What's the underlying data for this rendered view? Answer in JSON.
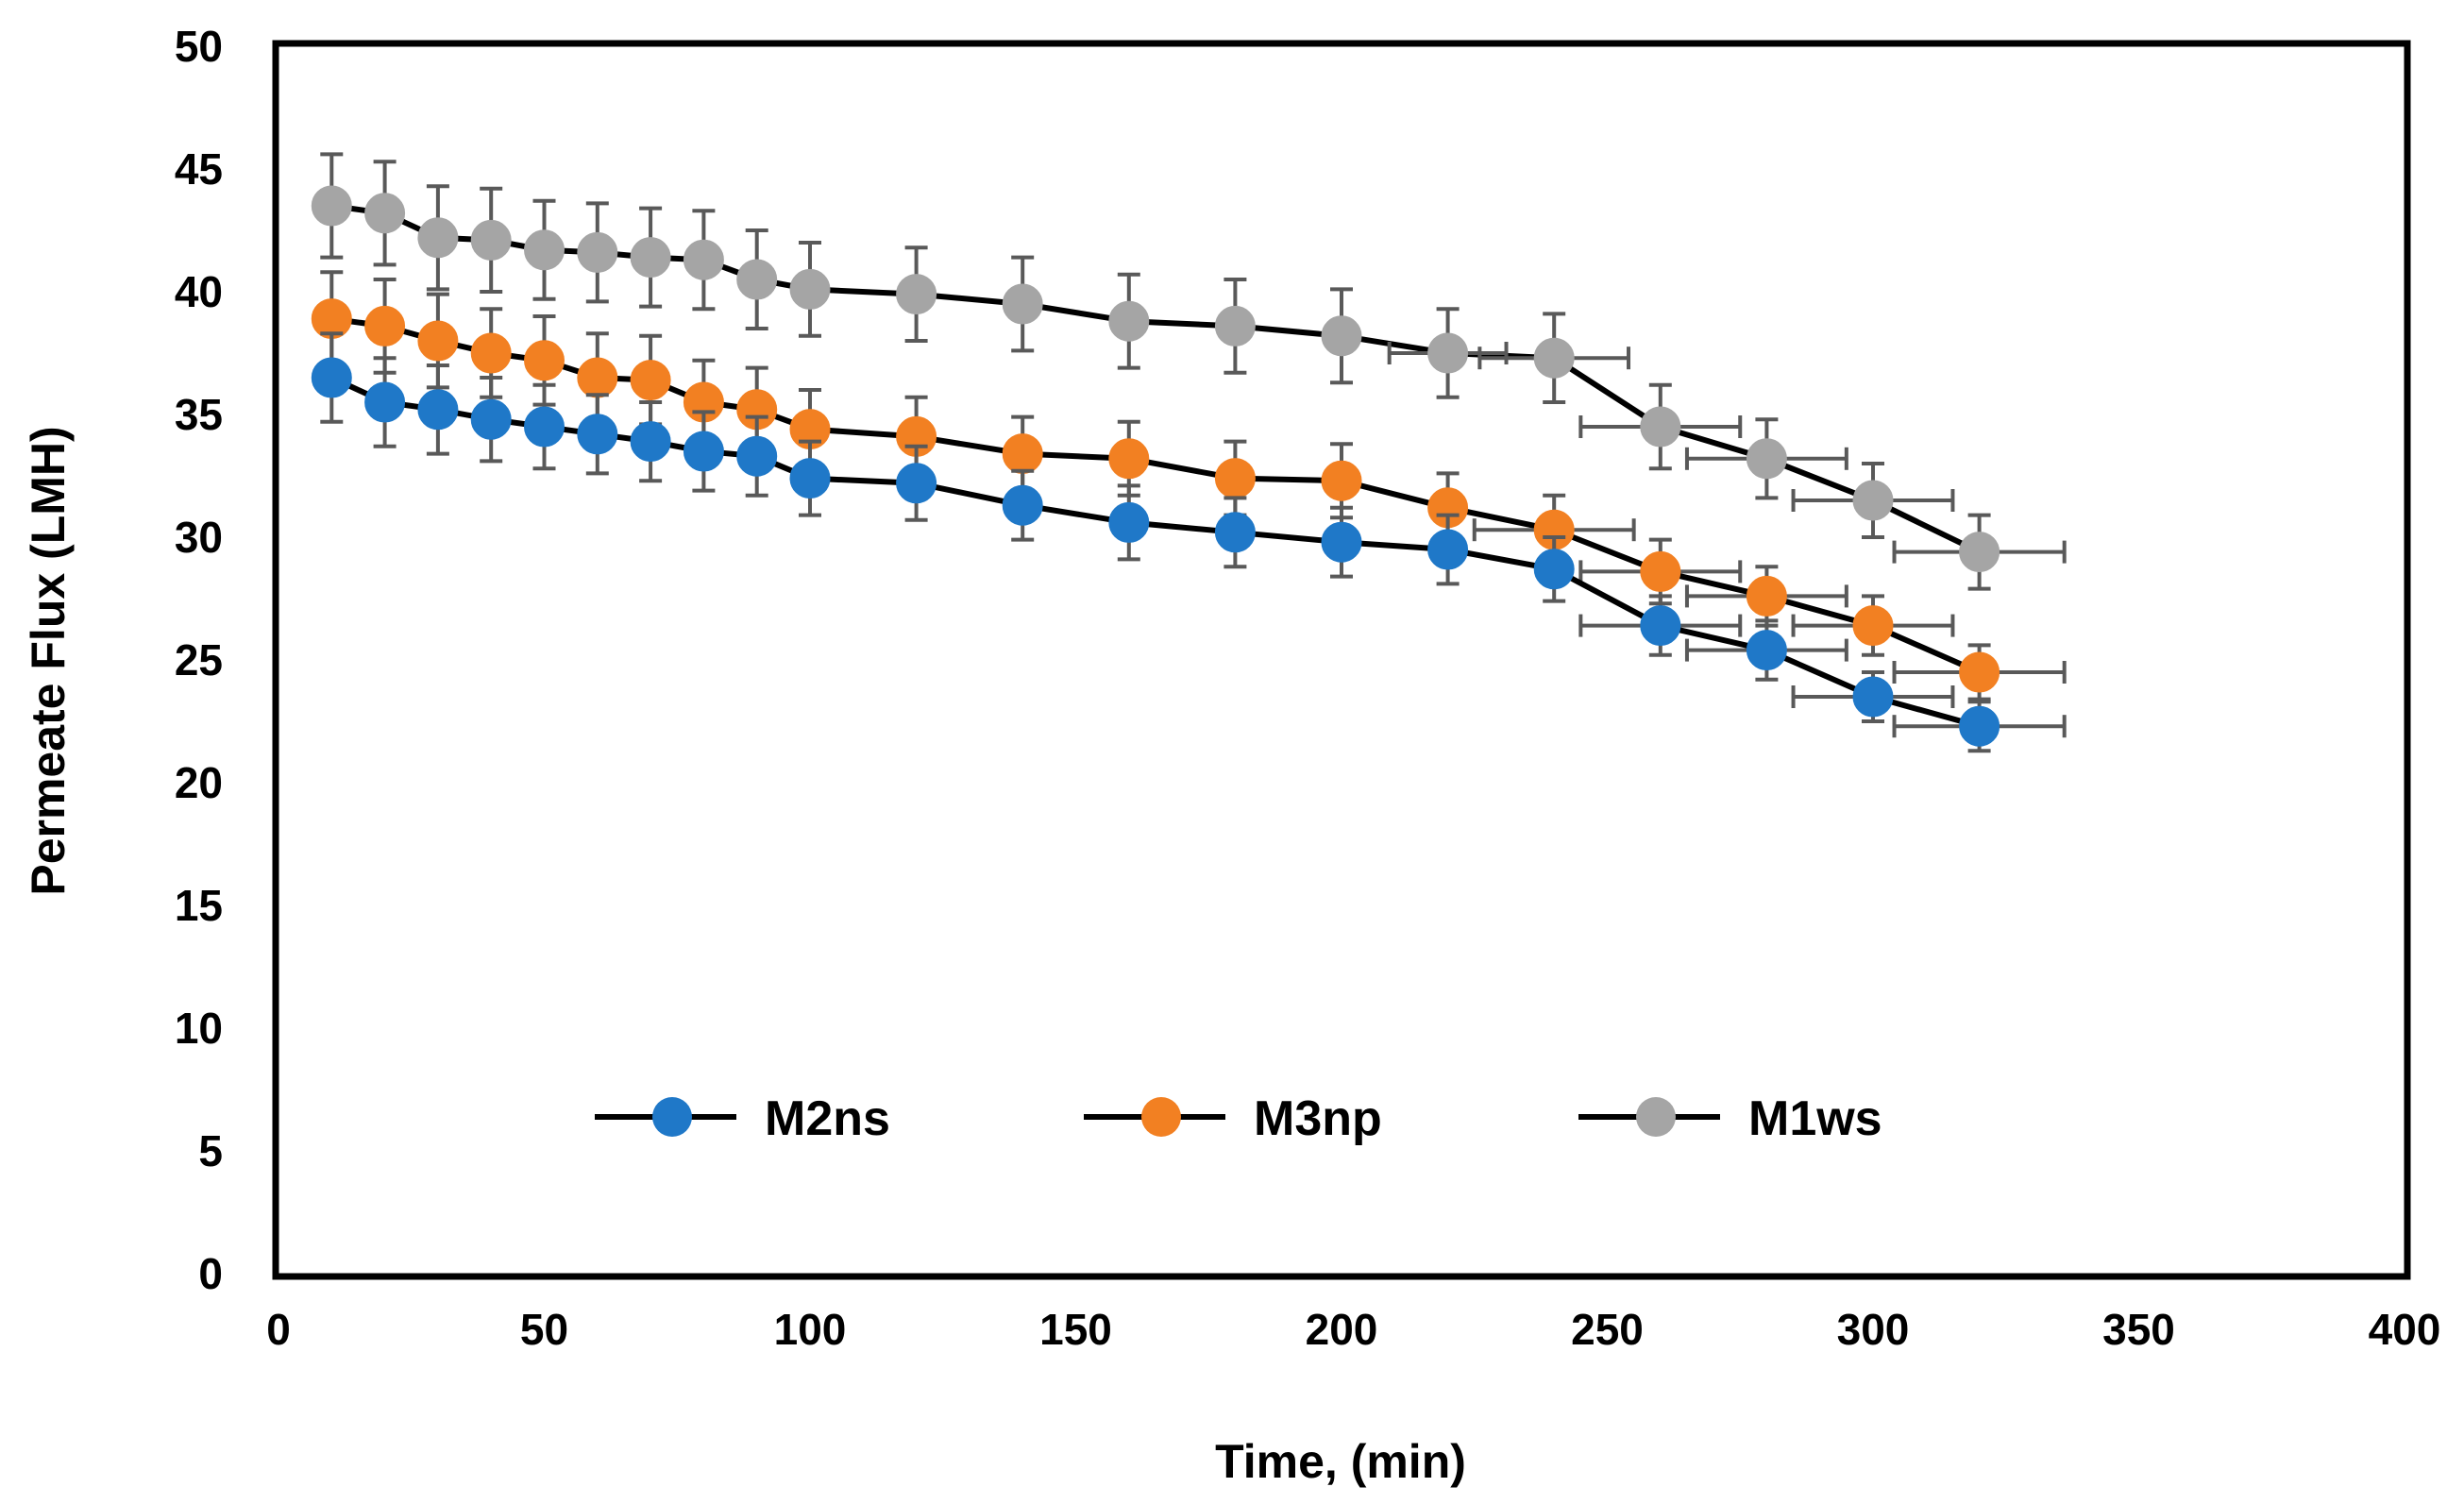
{
  "chart_data": {
    "type": "line",
    "title": "",
    "xlabel": "Time, (min)",
    "ylabel": "Permeate Flux (LMH)",
    "xlim": [
      0,
      400
    ],
    "ylim": [
      0,
      50
    ],
    "x_ticks": [
      0,
      50,
      100,
      150,
      200,
      250,
      300,
      350,
      400
    ],
    "y_ticks": [
      0,
      5,
      10,
      15,
      20,
      25,
      30,
      35,
      40,
      45,
      50
    ],
    "grid": false,
    "legend_position": "inside-bottom-center",
    "error_bars": "x and y",
    "x": [
      10,
      20,
      30,
      40,
      50,
      60,
      70,
      80,
      90,
      100,
      120,
      140,
      160,
      180,
      200,
      220,
      240,
      260,
      280,
      300,
      320
    ],
    "series": [
      {
        "name": "M2ns",
        "color": "#1f78c8",
        "values": [
          36.5,
          35.5,
          35.2,
          34.8,
          34.5,
          34.2,
          33.9,
          33.5,
          33.3,
          32.4,
          32.2,
          31.3,
          30.6,
          30.2,
          29.8,
          29.5,
          28.7,
          26.4,
          25.4,
          23.5,
          22.3
        ],
        "y_error": [
          1.8,
          1.8,
          1.8,
          1.7,
          1.7,
          1.6,
          1.6,
          1.6,
          1.6,
          1.5,
          1.5,
          1.4,
          1.5,
          1.4,
          1.4,
          1.4,
          1.3,
          1.2,
          1.2,
          1.0,
          1.0
        ],
        "x_error": [
          0,
          0,
          0,
          0,
          0,
          0,
          0,
          0,
          0,
          0,
          0,
          0,
          0,
          0,
          0,
          0,
          0,
          15,
          15,
          15,
          16
        ]
      },
      {
        "name": "M3np",
        "color": "#f28022",
        "values": [
          38.9,
          38.6,
          38.0,
          37.5,
          37.2,
          36.5,
          36.4,
          35.5,
          35.2,
          34.4,
          34.1,
          33.4,
          33.2,
          32.4,
          32.3,
          31.2,
          30.3,
          28.6,
          27.6,
          26.4,
          24.5
        ],
        "y_error": [
          1.9,
          1.9,
          1.9,
          1.8,
          1.8,
          1.8,
          1.8,
          1.7,
          1.7,
          1.6,
          1.6,
          1.5,
          1.5,
          1.5,
          1.5,
          1.4,
          1.4,
          1.3,
          1.2,
          1.2,
          1.1
        ],
        "x_error": [
          0,
          0,
          0,
          0,
          0,
          0,
          0,
          0,
          0,
          0,
          0,
          0,
          0,
          0,
          0,
          0,
          15,
          15,
          15,
          15,
          16
        ]
      },
      {
        "name": "M1ws",
        "color": "#a5a5a5",
        "values": [
          43.5,
          43.2,
          42.2,
          42.1,
          41.7,
          41.6,
          41.4,
          41.3,
          40.5,
          40.1,
          39.9,
          39.5,
          38.8,
          38.6,
          38.2,
          37.5,
          37.3,
          34.5,
          33.2,
          31.5,
          29.4
        ],
        "y_error": [
          2.1,
          2.1,
          2.1,
          2.1,
          2.0,
          2.0,
          2.0,
          2.0,
          2.0,
          1.9,
          1.9,
          1.9,
          1.9,
          1.9,
          1.9,
          1.8,
          1.8,
          1.7,
          1.6,
          1.5,
          1.5
        ],
        "x_error": [
          0,
          0,
          0,
          0,
          0,
          0,
          0,
          0,
          0,
          0,
          0,
          0,
          0,
          0,
          0,
          11,
          14,
          15,
          15,
          15,
          16
        ]
      }
    ]
  }
}
